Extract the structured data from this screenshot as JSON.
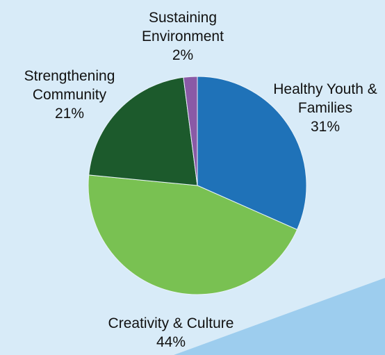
{
  "chart_data": {
    "type": "pie",
    "slices": [
      {
        "label": "Healthy Youth & Families",
        "label_lines": [
          "Healthy Youth &",
          "Families"
        ],
        "value": 31,
        "percent_label": "31%",
        "color": "#1f72b8"
      },
      {
        "label": "Creativity & Culture",
        "label_lines": [
          "Creativity & Culture"
        ],
        "value": 44,
        "percent_label": "44%",
        "color": "#79c152"
      },
      {
        "label": "Strengthening Community",
        "label_lines": [
          "Strengthening",
          "Community"
        ],
        "value": 21,
        "percent_label": "21%",
        "color": "#1c5a2c"
      },
      {
        "label": "Sustaining Environment",
        "label_lines": [
          "Sustaining",
          "Environment"
        ],
        "value": 2,
        "percent_label": "2%",
        "color": "#8a5aa6"
      }
    ],
    "start_angle_deg": 0,
    "direction": "clockwise"
  },
  "colors": {
    "background": "#d8ebf8",
    "accent_stripe": "#9dcdee"
  }
}
